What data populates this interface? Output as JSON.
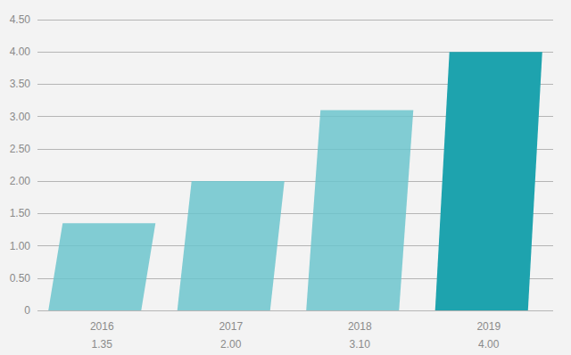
{
  "chart_data": {
    "type": "bar",
    "categories": [
      "2016",
      "2017",
      "2018",
      "2019"
    ],
    "values": [
      1.35,
      2.0,
      3.1,
      4.0
    ],
    "value_labels": [
      "1.35",
      "2.00",
      "3.10",
      "4.00"
    ],
    "data_labels": true,
    "colors": [
      "#6cc4cc",
      "#6cc4cc",
      "#6cc4cc",
      "#1ea3ae"
    ],
    "ylim": [
      0,
      4.5
    ],
    "yticks": [
      0,
      {
        "value": 0.5,
        "label": "0.50"
      },
      {
        "value": 1,
        "label": "1.00"
      },
      {
        "value": 1.5,
        "label": "1.50"
      },
      {
        "value": 2,
        "label": "2.00"
      },
      {
        "value": 2.5,
        "label": "2.50"
      },
      {
        "value": 3,
        "label": "3.00"
      },
      {
        "value": 3.5,
        "label": "3.50"
      },
      {
        "value": 4,
        "label": "4.00"
      },
      {
        "value": 4.5,
        "label": "4.50"
      }
    ],
    "grid": true
  }
}
